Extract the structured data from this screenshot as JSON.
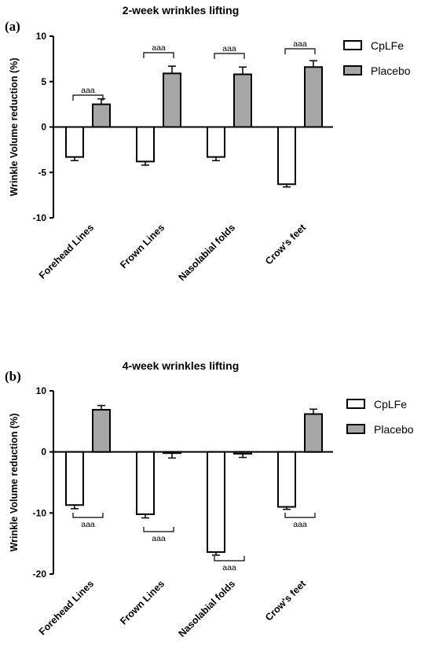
{
  "chart_data": [
    {
      "panel": "(a)",
      "type": "bar",
      "title": "2-week wrinkles lifting",
      "ylabel": "Wrinkle Volume reduction (%)",
      "xlabel": "",
      "categories": [
        "Forehead Lines",
        "Frown Lines",
        "Nasolabial folds",
        "Crow's feet"
      ],
      "series": [
        {
          "name": "CpLFe",
          "color": "#ffffff",
          "values": [
            -3.3,
            -3.8,
            -3.3,
            -6.3
          ],
          "errors": [
            0.4,
            0.4,
            0.4,
            0.3
          ]
        },
        {
          "name": "Placebo",
          "color": "#a6a6a6",
          "values": [
            2.5,
            5.9,
            5.8,
            6.6
          ],
          "errors": [
            0.6,
            0.8,
            0.8,
            0.7
          ]
        }
      ],
      "ylim": [
        -10,
        10
      ],
      "yticks": [
        "10",
        "5",
        "0",
        "-5",
        "-10"
      ],
      "significance": [
        "aaa",
        "aaa",
        "aaa",
        "aaa"
      ],
      "legend_position": "right"
    },
    {
      "panel": "(b)",
      "type": "bar",
      "title": "4-week wrinkles lifting",
      "ylabel": "Wrinkle Volume reduction (%)",
      "xlabel": "",
      "categories": [
        "Forehead Lines",
        "Frown Lines",
        "Nasolabial folds",
        "Crow's feet"
      ],
      "series": [
        {
          "name": "CpLFe",
          "color": "#ffffff",
          "values": [
            -8.7,
            -10.2,
            -16.4,
            -9.0
          ],
          "errors": [
            0.6,
            0.6,
            0.5,
            0.4
          ]
        },
        {
          "name": "Placebo",
          "color": "#a6a6a6",
          "values": [
            6.9,
            -0.2,
            -0.3,
            6.2
          ],
          "errors": [
            0.7,
            0.8,
            0.6,
            0.8
          ]
        }
      ],
      "ylim": [
        -20,
        10
      ],
      "yticks": [
        "10",
        "0",
        "-10",
        "-20"
      ],
      "significance": [
        "aaa",
        "aaa",
        "aaa",
        "aaa"
      ],
      "legend_position": "right"
    }
  ]
}
